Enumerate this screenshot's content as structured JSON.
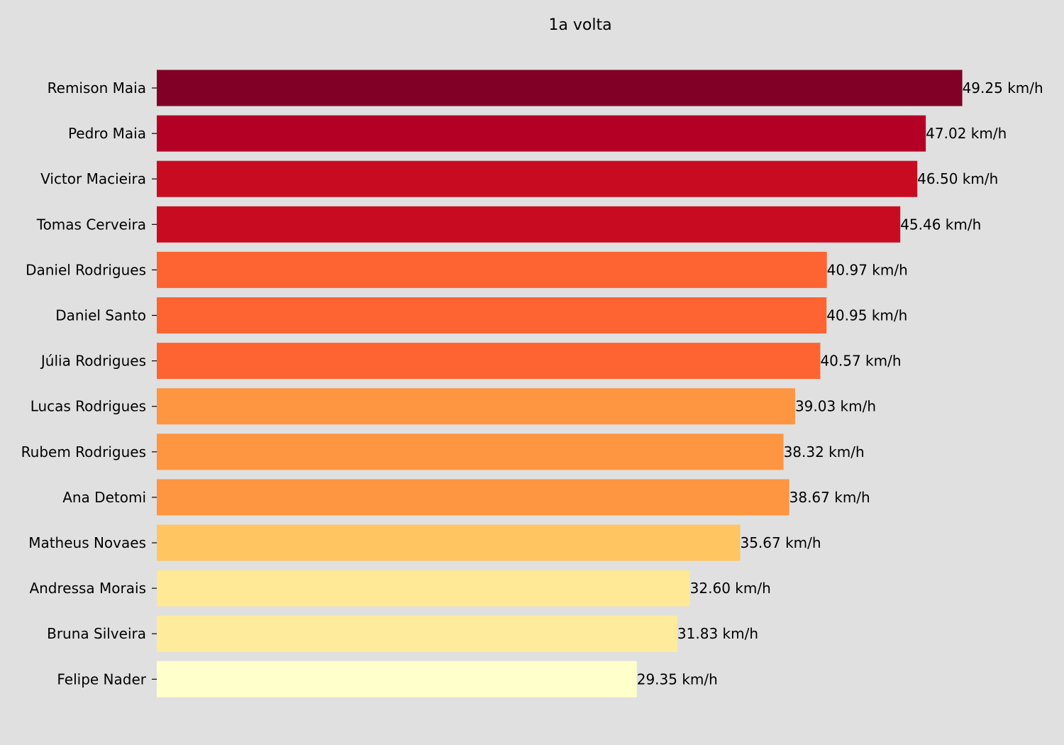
{
  "chart_data": {
    "type": "bar",
    "orientation": "horizontal",
    "title": "1a volta",
    "xlabel": "",
    "ylabel": "",
    "xlim": [
      0,
      52
    ],
    "grid": false,
    "legend": "none",
    "value_suffix": " km/h",
    "value_decimals": 2,
    "background": "#e0e0e0",
    "categories": [
      "Remison Maia",
      "Pedro Maia",
      "Victor Macieira",
      "Tomas Cerveira",
      "Daniel Rodrigues",
      "Daniel Santo",
      "Júlia Rodrigues",
      "Lucas Rodrigues",
      "Rubem Rodrigues",
      "Ana Detomi",
      "Matheus Novaes",
      "Andressa Morais",
      "Bruna Silveira",
      "Felipe Nader"
    ],
    "values": [
      49.25,
      47.02,
      46.5,
      45.46,
      40.97,
      40.95,
      40.57,
      39.03,
      38.32,
      38.67,
      35.67,
      32.6,
      31.83,
      29.35
    ],
    "colors": [
      "#800026",
      "#b50026",
      "#c90b22",
      "#c90b22",
      "#fd6431",
      "#fd6431",
      "#fd6431",
      "#fe9540",
      "#fe9540",
      "#fe9540",
      "#fec561",
      "#ffe896",
      "#ffeb9c",
      "#ffffcc"
    ]
  }
}
